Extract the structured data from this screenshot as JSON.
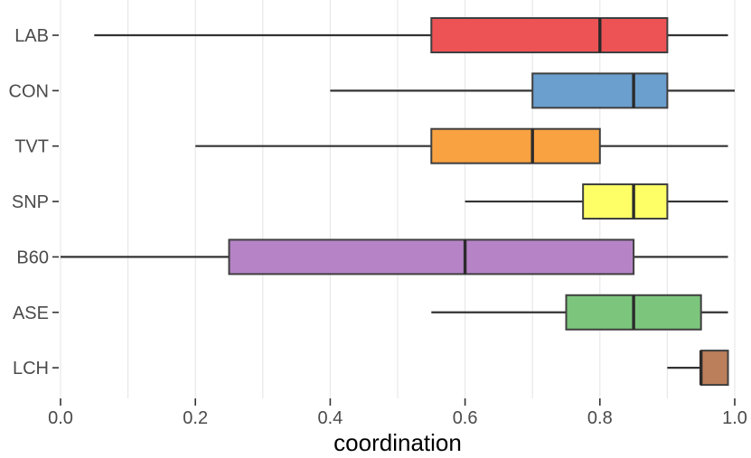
{
  "chart_data": {
    "type": "boxplot",
    "orientation": "horizontal",
    "title": "",
    "xlabel": "coordination",
    "ylabel": "",
    "xlim": [
      0,
      1
    ],
    "grid_step": 0.1,
    "grid": "vertical-only",
    "legend": "none",
    "x_ticks": [
      0.0,
      0.2,
      0.4,
      0.6,
      0.8,
      1.0
    ],
    "x_tick_labels": [
      "0.0",
      "0.2",
      "0.4",
      "0.6",
      "0.8",
      "1.0"
    ],
    "categories": [
      "LAB",
      "CON",
      "TVT",
      "SNP",
      "B60",
      "ASE",
      "LCH"
    ],
    "series": [
      {
        "category": "LAB",
        "min": 0.05,
        "q1": 0.55,
        "median": 0.8,
        "q3": 0.9,
        "max": 0.99,
        "color": "#ed5355"
      },
      {
        "category": "CON",
        "min": 0.4,
        "q1": 0.7,
        "median": 0.85,
        "q3": 0.9,
        "max": 1.0,
        "color": "#6b9fce"
      },
      {
        "category": "TVT",
        "min": 0.2,
        "q1": 0.55,
        "median": 0.7,
        "q3": 0.8,
        "max": 0.99,
        "color": "#f9a242"
      },
      {
        "category": "SNP",
        "min": 0.6,
        "q1": 0.775,
        "median": 0.85,
        "q3": 0.9,
        "max": 0.99,
        "color": "#feff66"
      },
      {
        "category": "B60",
        "min": 0.0,
        "q1": 0.25,
        "median": 0.6,
        "q3": 0.85,
        "max": 0.99,
        "color": "#b683c6"
      },
      {
        "category": "ASE",
        "min": 0.55,
        "q1": 0.75,
        "median": 0.85,
        "q3": 0.95,
        "max": 0.99,
        "color": "#7cc57d"
      },
      {
        "category": "LCH",
        "min": 0.9,
        "q1": 0.95,
        "median": 0.95,
        "q3": 0.99,
        "max": 0.99,
        "color": "#bc7f5b"
      }
    ]
  },
  "styles": {
    "background": "#ffffff",
    "grid_color": "#e8e8e8",
    "tick_color": "#333333",
    "axis_text_color": "#4a4a4a",
    "xlabel_color": "#000000",
    "whisker_color": "#333333",
    "box_border_color": "#3f3f3f",
    "median_color": "#2b2b2b"
  }
}
